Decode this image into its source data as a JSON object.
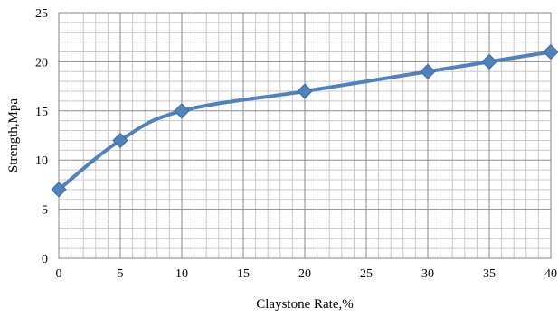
{
  "chart_data": {
    "type": "line",
    "xlabel": "Claystone Rate,%",
    "ylabel": "Strength,Mpa",
    "xlim": [
      0,
      40
    ],
    "ylim": [
      0,
      25
    ],
    "x_ticks": [
      0,
      5,
      10,
      15,
      20,
      25,
      30,
      35,
      40
    ],
    "y_ticks": [
      0,
      5,
      10,
      15,
      20,
      25
    ],
    "grid": true,
    "series": [
      {
        "x": [
          0,
          5,
          10,
          20,
          30,
          35,
          40
        ],
        "y": [
          7,
          12,
          15,
          17,
          19,
          20,
          21
        ],
        "marker": "diamond",
        "color": "#4f81bd"
      }
    ]
  }
}
